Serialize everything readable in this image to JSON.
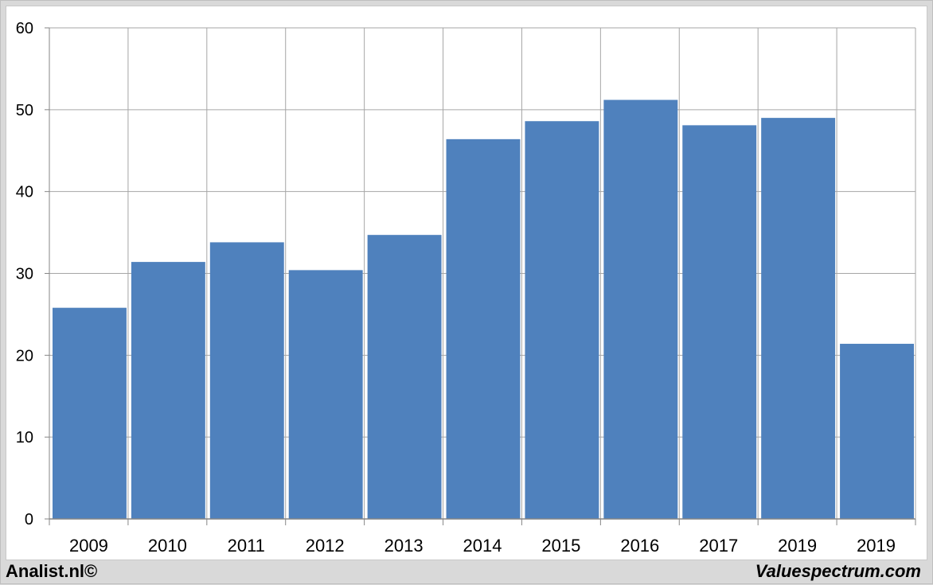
{
  "chart_data": {
    "type": "bar",
    "title": "",
    "xlabel": "",
    "ylabel": "",
    "categories": [
      "2009",
      "2010",
      "2011",
      "2012",
      "2013",
      "2014",
      "2015",
      "2016",
      "2017",
      "2019",
      "2019"
    ],
    "values": [
      25.8,
      31.4,
      33.8,
      30.4,
      34.7,
      46.4,
      48.6,
      51.2,
      48.1,
      49.0,
      21.4
    ],
    "ylim": [
      0,
      60
    ],
    "yticks": [
      0,
      10,
      20,
      30,
      40,
      50,
      60
    ],
    "grid": true,
    "bar_color": "#4f81bd",
    "grid_color": "#a6a6a6"
  },
  "footer": {
    "left": "Analist.nl©",
    "right": "Valuespectrum.com"
  }
}
